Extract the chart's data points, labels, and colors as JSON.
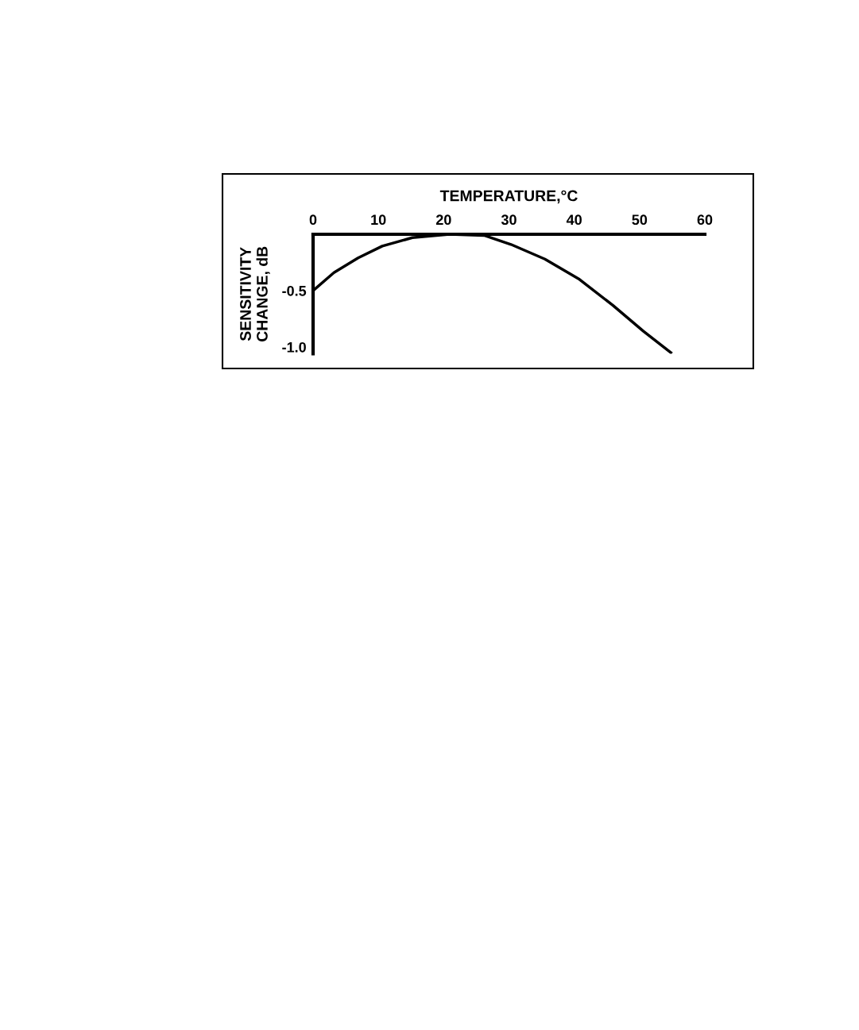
{
  "chart_data": {
    "type": "line",
    "xlabel": "TEMPERATURE,°C",
    "ylabel": "SENSITIVITY\nCHANGE, dB",
    "x": [
      0,
      3.2,
      6.9,
      10.6,
      15.2,
      20.9,
      26.2,
      30.3,
      35.5,
      40.8,
      45.9,
      50.6,
      54.8
    ],
    "series": [
      {
        "color": "#000000",
        "values": [
          -0.5,
          -0.34,
          -0.21,
          -0.105,
          -0.03,
          0,
          -0.01,
          -0.09,
          -0.22,
          -0.4,
          -0.63,
          -0.86,
          -1.05
        ]
      }
    ],
    "xlim": [
      0,
      60
    ],
    "xticks": [
      0,
      10,
      20,
      30,
      40,
      50,
      60
    ],
    "ylim": [
      -1.06,
      0
    ],
    "yticks": [
      -0.5,
      {
        "value": -1.0,
        "label": "-1.0"
      }
    ],
    "grid": false,
    "legend": false,
    "marker": "none",
    "line_style": "solid"
  }
}
